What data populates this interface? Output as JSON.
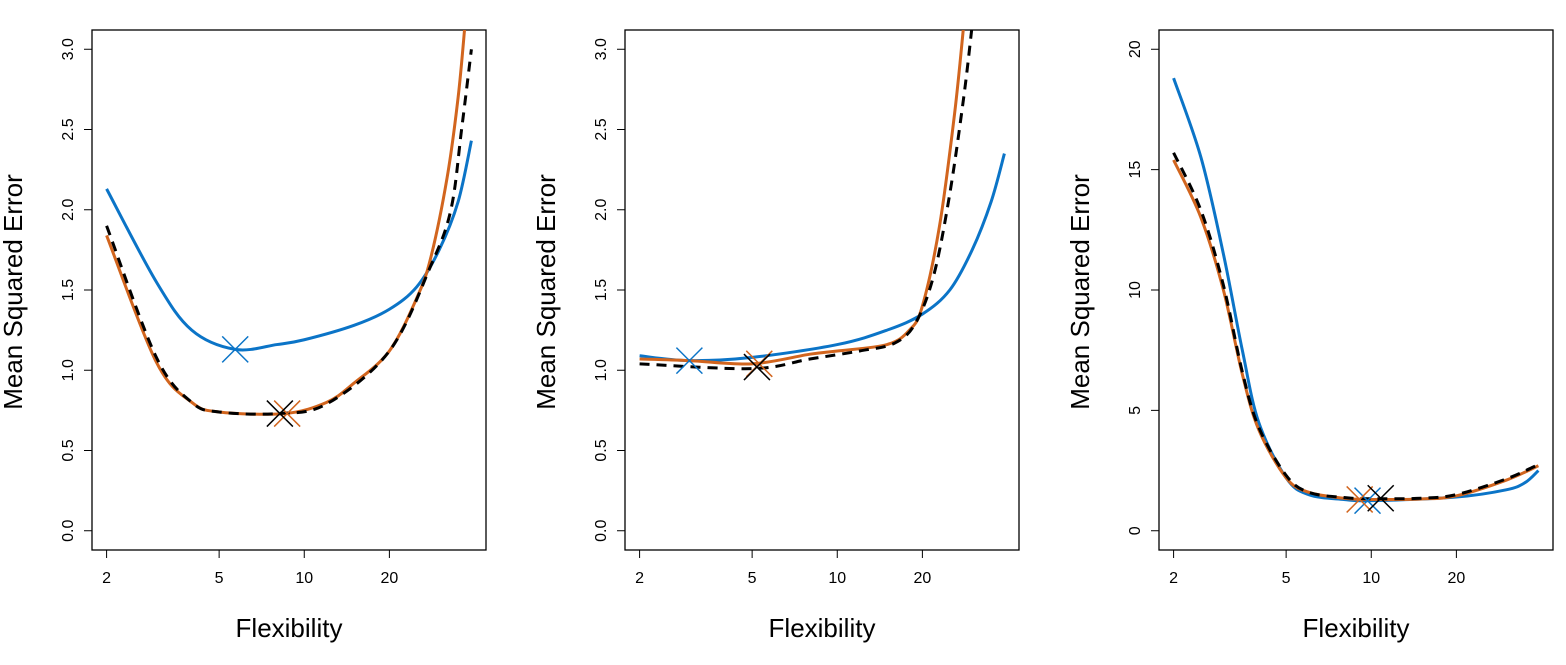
{
  "chart_data": [
    {
      "type": "line",
      "xlabel": "Flexibility",
      "ylabel": "Mean Squared Error",
      "xscale": "log",
      "xlim": [
        2,
        39
      ],
      "ylim": [
        0,
        3.0
      ],
      "xticks": [
        2,
        5,
        10,
        20
      ],
      "yticks": [
        "0.0",
        "0.5",
        "1.0",
        "1.5",
        "2.0",
        "2.5",
        "3.0"
      ],
      "grid": false,
      "series": [
        {
          "color": "#0b74c7",
          "style": "solid",
          "x": [
            2,
            3,
            4,
            5.7,
            8,
            10,
            15,
            20,
            25,
            30,
            35,
            39
          ],
          "y": [
            2.13,
            1.55,
            1.25,
            1.13,
            1.16,
            1.19,
            1.28,
            1.38,
            1.52,
            1.75,
            2.05,
            2.43
          ],
          "min_marker": [
            5.7,
            1.13
          ]
        },
        {
          "color": "#d2651e",
          "style": "solid",
          "x": [
            2,
            3,
            4,
            5,
            8.5,
            12,
            15,
            20,
            25,
            28,
            32,
            35,
            37
          ],
          "y": [
            1.84,
            1.05,
            0.8,
            0.74,
            0.73,
            0.8,
            0.92,
            1.12,
            1.45,
            1.7,
            2.2,
            2.7,
            3.15
          ],
          "min_marker": [
            8.7,
            0.73
          ]
        },
        {
          "color": "#000000",
          "style": "dashed",
          "x": [
            2,
            3,
            4,
            5,
            8,
            12,
            20,
            28,
            33,
            36,
            39
          ],
          "y": [
            1.9,
            1.08,
            0.8,
            0.74,
            0.73,
            0.79,
            1.12,
            1.65,
            2.0,
            2.5,
            3.0
          ],
          "min_marker": [
            8.2,
            0.73
          ]
        }
      ]
    },
    {
      "type": "line",
      "xlabel": "Flexibility",
      "ylabel": "Mean Squared Error",
      "xscale": "log",
      "xlim": [
        2,
        39
      ],
      "ylim": [
        0,
        3.0
      ],
      "xticks": [
        2,
        5,
        10,
        20
      ],
      "yticks": [
        "0.0",
        "0.5",
        "1.0",
        "1.5",
        "2.0",
        "2.5",
        "3.0"
      ],
      "grid": false,
      "series": [
        {
          "color": "#0b74c7",
          "style": "solid",
          "x": [
            2,
            3,
            5,
            10,
            15,
            20,
            25,
            30,
            35,
            39
          ],
          "y": [
            1.09,
            1.06,
            1.08,
            1.16,
            1.25,
            1.35,
            1.5,
            1.75,
            2.05,
            2.35
          ],
          "min_marker": [
            3.0,
            1.06
          ]
        },
        {
          "color": "#d2651e",
          "style": "solid",
          "x": [
            2,
            3,
            5,
            8,
            10,
            15,
            18,
            20,
            23,
            26,
            28
          ],
          "y": [
            1.07,
            1.06,
            1.04,
            1.1,
            1.12,
            1.16,
            1.25,
            1.4,
            1.9,
            2.6,
            3.15
          ],
          "min_marker": [
            5.3,
            1.04
          ]
        },
        {
          "color": "#000000",
          "style": "dashed",
          "x": [
            2,
            5,
            8,
            12,
            16,
            19,
            22,
            25,
            28,
            30
          ],
          "y": [
            1.04,
            1.01,
            1.07,
            1.12,
            1.17,
            1.3,
            1.6,
            2.1,
            2.7,
            3.15
          ],
          "min_marker": [
            5.2,
            1.02
          ]
        }
      ]
    },
    {
      "type": "line",
      "xlabel": "Flexibility",
      "ylabel": "Mean Squared Error",
      "xscale": "log",
      "xlim": [
        2,
        39
      ],
      "ylim": [
        0,
        20
      ],
      "xticks": [
        2,
        5,
        10,
        20
      ],
      "yticks": [
        "0",
        "5",
        "10",
        "15",
        "20"
      ],
      "grid": false,
      "series": [
        {
          "color": "#0b74c7",
          "style": "solid",
          "x": [
            2,
            2.5,
            3,
            3.5,
            4,
            5,
            6,
            8,
            10,
            20,
            30,
            35,
            39
          ],
          "y": [
            18.8,
            15.5,
            11.5,
            7.5,
            4.5,
            2.2,
            1.5,
            1.3,
            1.25,
            1.4,
            1.7,
            2.0,
            2.5
          ],
          "min_marker": [
            9.7,
            1.25
          ]
        },
        {
          "color": "#d2651e",
          "style": "solid",
          "x": [
            2,
            2.5,
            3,
            3.5,
            4,
            5,
            6,
            8,
            10,
            15,
            20,
            30,
            39
          ],
          "y": [
            15.4,
            13,
            10,
            6.5,
            4.2,
            2.2,
            1.6,
            1.35,
            1.3,
            1.32,
            1.45,
            2.1,
            2.7
          ],
          "min_marker": [
            9.1,
            1.3
          ]
        },
        {
          "color": "#000000",
          "style": "dashed",
          "x": [
            2,
            2.5,
            3,
            3.5,
            4,
            5,
            6,
            8,
            10,
            15,
            20,
            30,
            39
          ],
          "y": [
            15.7,
            13.3,
            10.2,
            6.6,
            4.3,
            2.3,
            1.6,
            1.38,
            1.33,
            1.35,
            1.5,
            2.15,
            2.75
          ],
          "min_marker": [
            10.8,
            1.35
          ]
        }
      ]
    }
  ]
}
